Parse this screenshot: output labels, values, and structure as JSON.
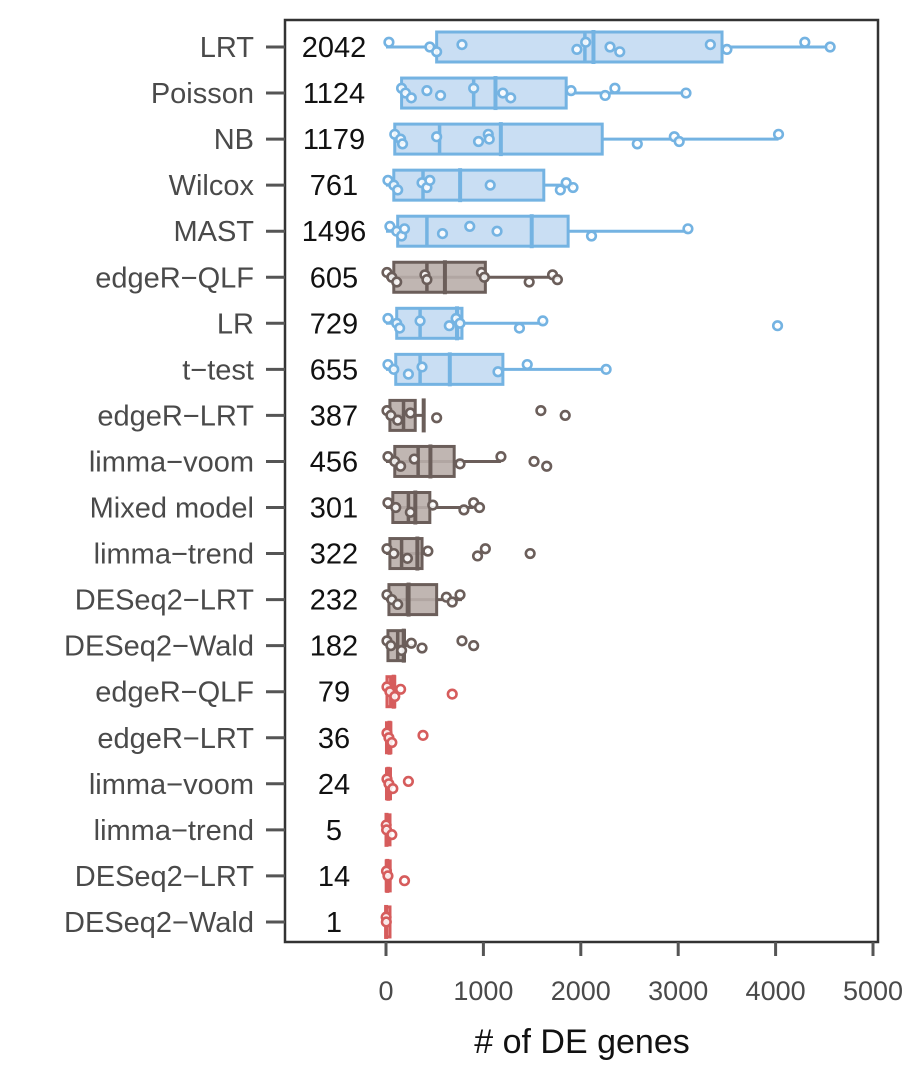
{
  "colors": {
    "group_blue": "#74b3e2",
    "group_gray": "#6b5e5a",
    "group_red": "#d65c5c",
    "axis": "#333333",
    "text": "#4a4a4a"
  },
  "chart_data": {
    "type": "boxplot",
    "title": "",
    "xlabel": "# of DE genes",
    "ylabel": "",
    "xlim": [
      -1000,
      5000
    ],
    "xticks": [
      0,
      1000,
      2000,
      3000,
      4000,
      5000
    ],
    "grid": false,
    "legend": "none",
    "rows": [
      {
        "label": "LRT",
        "count": "2042",
        "group": "blue",
        "stats": {
          "min": 0,
          "q1": 520,
          "median": 2042,
          "mean": 2130,
          "q3": 3450,
          "max": 4580
        },
        "points": [
          30,
          450,
          520,
          780,
          1960,
          2050,
          2300,
          2400,
          3330,
          3500,
          4300,
          4560
        ]
      },
      {
        "label": "Poisson",
        "count": "1124",
        "group": "blue",
        "stats": {
          "min": 160,
          "q1": 160,
          "median": 900,
          "mean": 1124,
          "q3": 1850,
          "max": 3080
        },
        "points": [
          160,
          200,
          260,
          420,
          560,
          900,
          1200,
          1280,
          1900,
          2250,
          2350,
          3080
        ]
      },
      {
        "label": "NB",
        "count": "1179",
        "group": "blue",
        "stats": {
          "min": 90,
          "q1": 90,
          "median": 550,
          "mean": 1179,
          "q3": 2220,
          "max": 4030
        },
        "points": [
          90,
          150,
          170,
          520,
          950,
          1050,
          1060,
          2580,
          2960,
          3010,
          4030
        ]
      },
      {
        "label": "Wilcox",
        "count": "761",
        "group": "blue",
        "stats": {
          "min": 0,
          "q1": 80,
          "median": 380,
          "mean": 761,
          "q3": 1620,
          "max": 1920
        },
        "points": [
          20,
          80,
          120,
          370,
          420,
          450,
          1070,
          1790,
          1850,
          1920
        ]
      },
      {
        "label": "MAST",
        "count": "1496",
        "group": "blue",
        "stats": {
          "min": 0,
          "q1": 120,
          "median": 420,
          "mean": 1496,
          "q3": 1870,
          "max": 3100
        },
        "points": [
          40,
          110,
          160,
          190,
          580,
          860,
          1140,
          2110,
          3100
        ]
      },
      {
        "label": "edgeR−QLF",
        "count": "605",
        "group": "gray",
        "stats": {
          "min": 0,
          "q1": 80,
          "median": 420,
          "mean": 605,
          "q3": 1020,
          "max": 1780
        },
        "points": [
          10,
          60,
          110,
          400,
          420,
          980,
          1010,
          1470,
          1710,
          1760
        ]
      },
      {
        "label": "LR",
        "count": "729",
        "group": "blue",
        "stats": {
          "min": 0,
          "q1": 110,
          "median": 350,
          "mean": 729,
          "q3": 780,
          "max": 1620
        },
        "points": [
          20,
          110,
          140,
          350,
          650,
          720,
          760,
          1370,
          1610,
          4020
        ]
      },
      {
        "label": "t−test",
        "count": "655",
        "group": "blue",
        "stats": {
          "min": 0,
          "q1": 100,
          "median": 350,
          "mean": 655,
          "q3": 1200,
          "max": 2260
        },
        "points": [
          20,
          80,
          230,
          370,
          1150,
          1450,
          2260
        ]
      },
      {
        "label": "edgeR−LRT",
        "count": "387",
        "group": "gray",
        "stats": {
          "min": 0,
          "q1": 40,
          "median": 180,
          "mean": 387,
          "q3": 300,
          "max": 400
        },
        "points": [
          10,
          50,
          120,
          250,
          520,
          1590,
          1840
        ]
      },
      {
        "label": "limma−voom",
        "count": "456",
        "group": "gray",
        "stats": {
          "min": 0,
          "q1": 90,
          "median": 330,
          "mean": 456,
          "q3": 700,
          "max": 1180
        },
        "points": [
          20,
          90,
          150,
          290,
          760,
          1180,
          1520,
          1650
        ]
      },
      {
        "label": "Mixed model",
        "count": "301",
        "group": "gray",
        "stats": {
          "min": 0,
          "q1": 70,
          "median": 230,
          "mean": 301,
          "q3": 450,
          "max": 900
        },
        "points": [
          20,
          100,
          250,
          480,
          800,
          900,
          960
        ]
      },
      {
        "label": "limma−trend",
        "count": "322",
        "group": "gray",
        "stats": {
          "min": 0,
          "q1": 40,
          "median": 160,
          "mean": 322,
          "q3": 370,
          "max": 420
        },
        "points": [
          10,
          80,
          220,
          430,
          940,
          1020,
          1480
        ]
      },
      {
        "label": "DESeq2−LRT",
        "count": "232",
        "group": "gray",
        "stats": {
          "min": 0,
          "q1": 30,
          "median": 220,
          "mean": 232,
          "q3": 520,
          "max": 780
        },
        "points": [
          10,
          60,
          120,
          620,
          680,
          760
        ]
      },
      {
        "label": "DESeq2−Wald",
        "count": "182",
        "group": "gray",
        "stats": {
          "min": 0,
          "q1": 20,
          "median": 120,
          "mean": 182,
          "q3": 190,
          "max": 300
        },
        "points": [
          10,
          50,
          160,
          260,
          370,
          780,
          900
        ]
      },
      {
        "label": "edgeR−QLF",
        "count": "79",
        "group": "red",
        "stats": {
          "min": 0,
          "q1": 10,
          "median": 50,
          "mean": 79,
          "q3": 90,
          "max": 150
        },
        "points": [
          10,
          40,
          90,
          150,
          680
        ]
      },
      {
        "label": "edgeR−LRT",
        "count": "36",
        "group": "red",
        "stats": {
          "min": 0,
          "q1": 5,
          "median": 20,
          "mean": 36,
          "q3": 50,
          "max": 70
        },
        "points": [
          10,
          30,
          60,
          380
        ]
      },
      {
        "label": "limma−voom",
        "count": "24",
        "group": "red",
        "stats": {
          "min": 0,
          "q1": 5,
          "median": 15,
          "mean": 24,
          "q3": 40,
          "max": 60
        },
        "points": [
          10,
          30,
          70,
          230
        ]
      },
      {
        "label": "limma−trend",
        "count": "5",
        "group": "red",
        "stats": {
          "min": 0,
          "q1": 0,
          "median": 3,
          "mean": 5,
          "q3": 8,
          "max": 12
        },
        "points": [
          2,
          6,
          60
        ]
      },
      {
        "label": "DESeq2−LRT",
        "count": "14",
        "group": "red",
        "stats": {
          "min": 0,
          "q1": 2,
          "median": 10,
          "mean": 14,
          "q3": 20,
          "max": 40
        },
        "points": [
          5,
          20,
          190
        ]
      },
      {
        "label": "DESeq2−Wald",
        "count": "1",
        "group": "red",
        "stats": {
          "min": 0,
          "q1": 0,
          "median": 1,
          "mean": 1,
          "q3": 2,
          "max": 4
        },
        "points": [
          1,
          3
        ]
      }
    ]
  }
}
